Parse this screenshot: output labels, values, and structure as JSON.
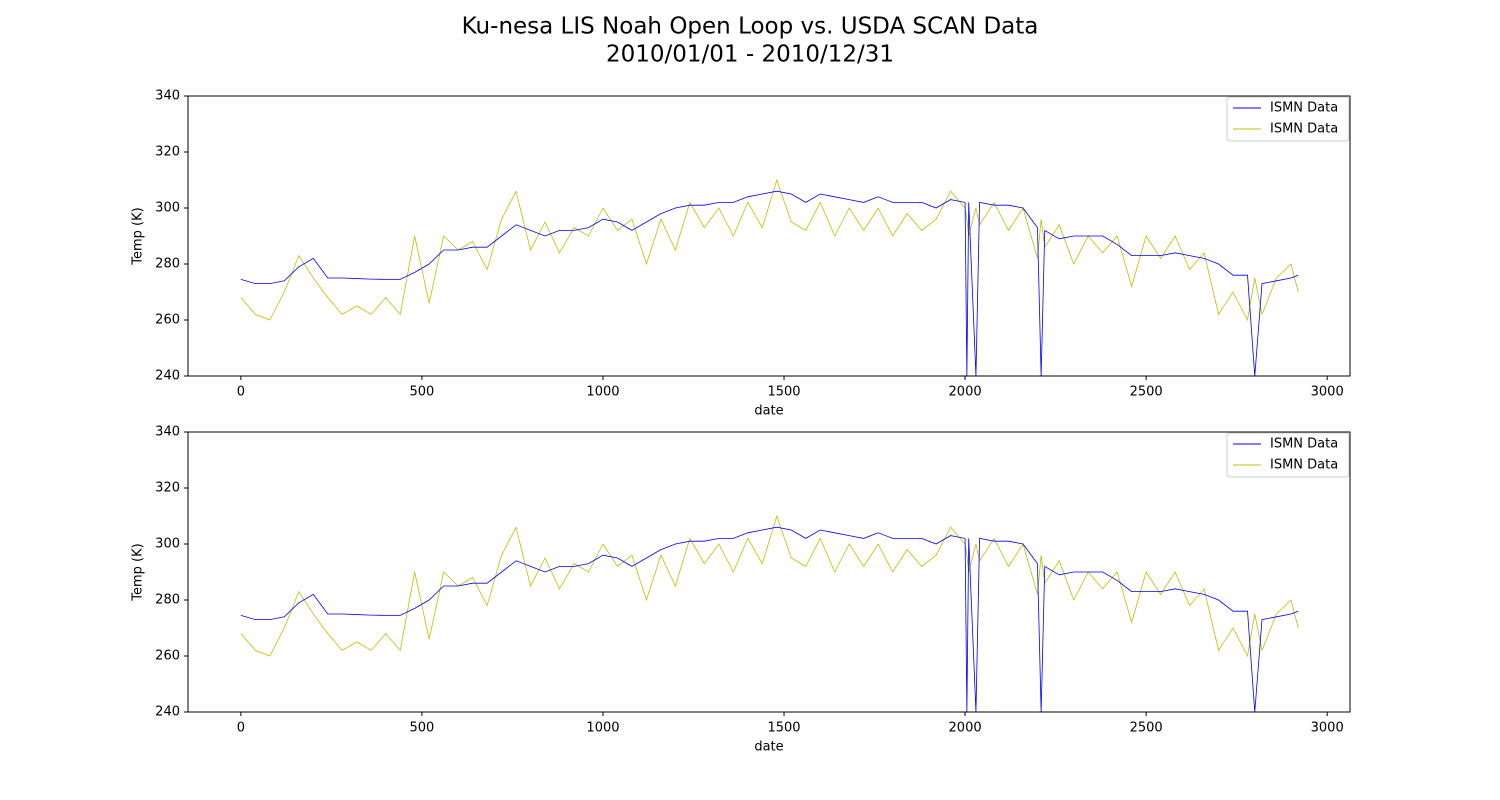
{
  "title": [
    "Ku-nesa LIS Noah Open Loop vs. USDA SCAN Data",
    "2010/01/01 - 2010/12/31"
  ],
  "chart_data": [
    {
      "type": "line",
      "xlabel": "date",
      "ylabel": "Temp (K)",
      "legend": "upper right",
      "xlim": [
        -146,
        3063
      ],
      "ylim": [
        240,
        340
      ],
      "xticks": [
        0,
        500,
        1000,
        1500,
        2000,
        2500,
        3000
      ],
      "yticks": [
        240,
        260,
        280,
        300,
        320,
        340
      ],
      "x": [
        0,
        40,
        80,
        120,
        160,
        200,
        240,
        280,
        320,
        360,
        400,
        440,
        480,
        520,
        560,
        600,
        640,
        680,
        720,
        760,
        800,
        840,
        880,
        920,
        960,
        1000,
        1040,
        1080,
        1120,
        1160,
        1200,
        1240,
        1280,
        1320,
        1360,
        1400,
        1440,
        1480,
        1520,
        1560,
        1600,
        1640,
        1680,
        1720,
        1760,
        1800,
        1840,
        1880,
        1920,
        1960,
        2000,
        2005,
        2010,
        2030,
        2040,
        2080,
        2120,
        2160,
        2200,
        2210,
        2220,
        2260,
        2300,
        2340,
        2380,
        2420,
        2460,
        2500,
        2540,
        2580,
        2620,
        2660,
        2700,
        2740,
        2780,
        2800,
        2820,
        2860,
        2900,
        2920
      ],
      "series": [
        {
          "name": "ISMN Data",
          "color": "#0000ff",
          "values": [
            274.5,
            273,
            273,
            274,
            279,
            282,
            275,
            275,
            274.8,
            274.6,
            274.5,
            274.5,
            277,
            280,
            285,
            285,
            286,
            286,
            290,
            294,
            292,
            290,
            292,
            292,
            293,
            296,
            295,
            292,
            295,
            298,
            300,
            301,
            301,
            302,
            302,
            304,
            305,
            306,
            305,
            302,
            305,
            304,
            303,
            302,
            304,
            302,
            302,
            302,
            300,
            303,
            302,
            240,
            302,
            240,
            302,
            301,
            301,
            300,
            293,
            240,
            292,
            289,
            290,
            290,
            290,
            287,
            283,
            283,
            283,
            284,
            283,
            282,
            280,
            276,
            276,
            240,
            273,
            274,
            275,
            276
          ]
        },
        {
          "name": "ISMN Data",
          "color": "#bfbf00",
          "values": [
            268,
            262,
            260,
            270,
            283,
            275,
            268,
            262,
            265,
            262,
            268,
            262,
            290,
            266,
            290,
            285,
            288,
            278,
            296,
            306,
            285,
            295,
            284,
            293,
            290,
            300,
            292,
            296,
            280,
            296,
            285,
            302,
            293,
            300,
            290,
            302,
            293,
            310,
            295,
            292,
            302,
            290,
            300,
            292,
            300,
            290,
            298,
            292,
            296,
            306,
            300,
            296,
            290,
            300,
            294,
            302,
            292,
            300,
            282,
            296,
            286,
            294,
            280,
            290,
            284,
            290,
            272,
            290,
            282,
            290,
            278,
            284,
            262,
            270,
            260,
            275,
            262,
            275,
            280,
            270
          ]
        }
      ]
    },
    {
      "type": "line",
      "xlabel": "date",
      "ylabel": "Temp (K)",
      "legend": "upper right",
      "xlim": [
        -146,
        3063
      ],
      "ylim": [
        240,
        340
      ],
      "xticks": [
        0,
        500,
        1000,
        1500,
        2000,
        2500,
        3000
      ],
      "yticks": [
        240,
        260,
        280,
        300,
        320,
        340
      ],
      "x": [
        0,
        40,
        80,
        120,
        160,
        200,
        240,
        280,
        320,
        360,
        400,
        440,
        480,
        520,
        560,
        600,
        640,
        680,
        720,
        760,
        800,
        840,
        880,
        920,
        960,
        1000,
        1040,
        1080,
        1120,
        1160,
        1200,
        1240,
        1280,
        1320,
        1360,
        1400,
        1440,
        1480,
        1520,
        1560,
        1600,
        1640,
        1680,
        1720,
        1760,
        1800,
        1840,
        1880,
        1920,
        1960,
        2000,
        2005,
        2010,
        2030,
        2040,
        2080,
        2120,
        2160,
        2200,
        2210,
        2220,
        2260,
        2300,
        2340,
        2380,
        2420,
        2460,
        2500,
        2540,
        2580,
        2620,
        2660,
        2700,
        2740,
        2780,
        2800,
        2820,
        2860,
        2900,
        2920
      ],
      "series": [
        {
          "name": "ISMN Data",
          "color": "#0000ff",
          "values": [
            274.5,
            273,
            273,
            274,
            279,
            282,
            275,
            275,
            274.8,
            274.6,
            274.5,
            274.5,
            277,
            280,
            285,
            285,
            286,
            286,
            290,
            294,
            292,
            290,
            292,
            292,
            293,
            296,
            295,
            292,
            295,
            298,
            300,
            301,
            301,
            302,
            302,
            304,
            305,
            306,
            305,
            302,
            305,
            304,
            303,
            302,
            304,
            302,
            302,
            302,
            300,
            303,
            302,
            240,
            302,
            240,
            302,
            301,
            301,
            300,
            293,
            240,
            292,
            289,
            290,
            290,
            290,
            287,
            283,
            283,
            283,
            284,
            283,
            282,
            280,
            276,
            276,
            240,
            273,
            274,
            275,
            276
          ]
        },
        {
          "name": "ISMN Data",
          "color": "#bfbf00",
          "values": [
            268,
            262,
            260,
            270,
            283,
            275,
            268,
            262,
            265,
            262,
            268,
            262,
            290,
            266,
            290,
            285,
            288,
            278,
            296,
            306,
            285,
            295,
            284,
            293,
            290,
            300,
            292,
            296,
            280,
            296,
            285,
            302,
            293,
            300,
            290,
            302,
            293,
            310,
            295,
            292,
            302,
            290,
            300,
            292,
            300,
            290,
            298,
            292,
            296,
            306,
            300,
            296,
            290,
            300,
            294,
            302,
            292,
            300,
            282,
            296,
            286,
            294,
            280,
            290,
            284,
            290,
            272,
            290,
            282,
            290,
            278,
            284,
            262,
            270,
            260,
            275,
            262,
            275,
            280,
            270
          ]
        }
      ]
    }
  ]
}
